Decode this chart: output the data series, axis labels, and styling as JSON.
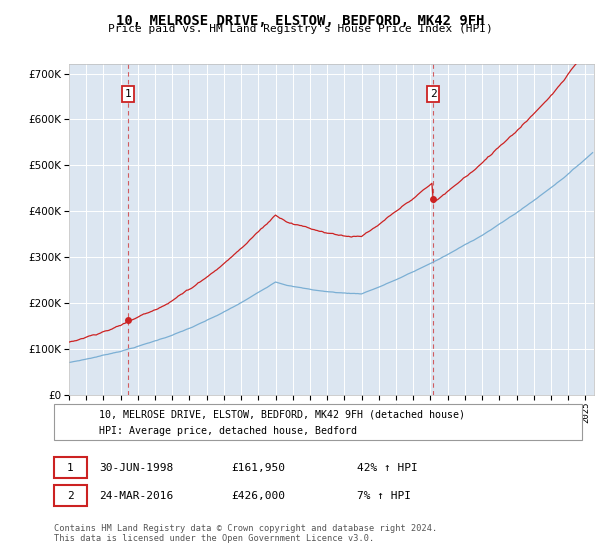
{
  "title": "10, MELROSE DRIVE, ELSTOW, BEDFORD, MK42 9FH",
  "subtitle": "Price paid vs. HM Land Registry's House Price Index (HPI)",
  "legend_line1": "10, MELROSE DRIVE, ELSTOW, BEDFORD, MK42 9FH (detached house)",
  "legend_line2": "HPI: Average price, detached house, Bedford",
  "transaction1_date": "30-JUN-1998",
  "transaction1_price": 161950,
  "transaction1_label": "£161,950",
  "transaction1_hpi": "42% ↑ HPI",
  "transaction2_date": "24-MAR-2016",
  "transaction2_price": 426000,
  "transaction2_label": "£426,000",
  "transaction2_hpi": "7% ↑ HPI",
  "footer": "Contains HM Land Registry data © Crown copyright and database right 2024.\nThis data is licensed under the Open Government Licence v3.0.",
  "hpi_color": "#7bafd4",
  "price_color": "#cc2222",
  "background_color": "#dce6f1",
  "annotation_box_color": "#cc2222",
  "vline_color": "#cc2222",
  "ylim": [
    0,
    720000
  ],
  "yticks": [
    0,
    100000,
    200000,
    300000,
    400000,
    500000,
    600000,
    700000
  ],
  "xlim_start": 1995.0,
  "xlim_end": 2025.5
}
